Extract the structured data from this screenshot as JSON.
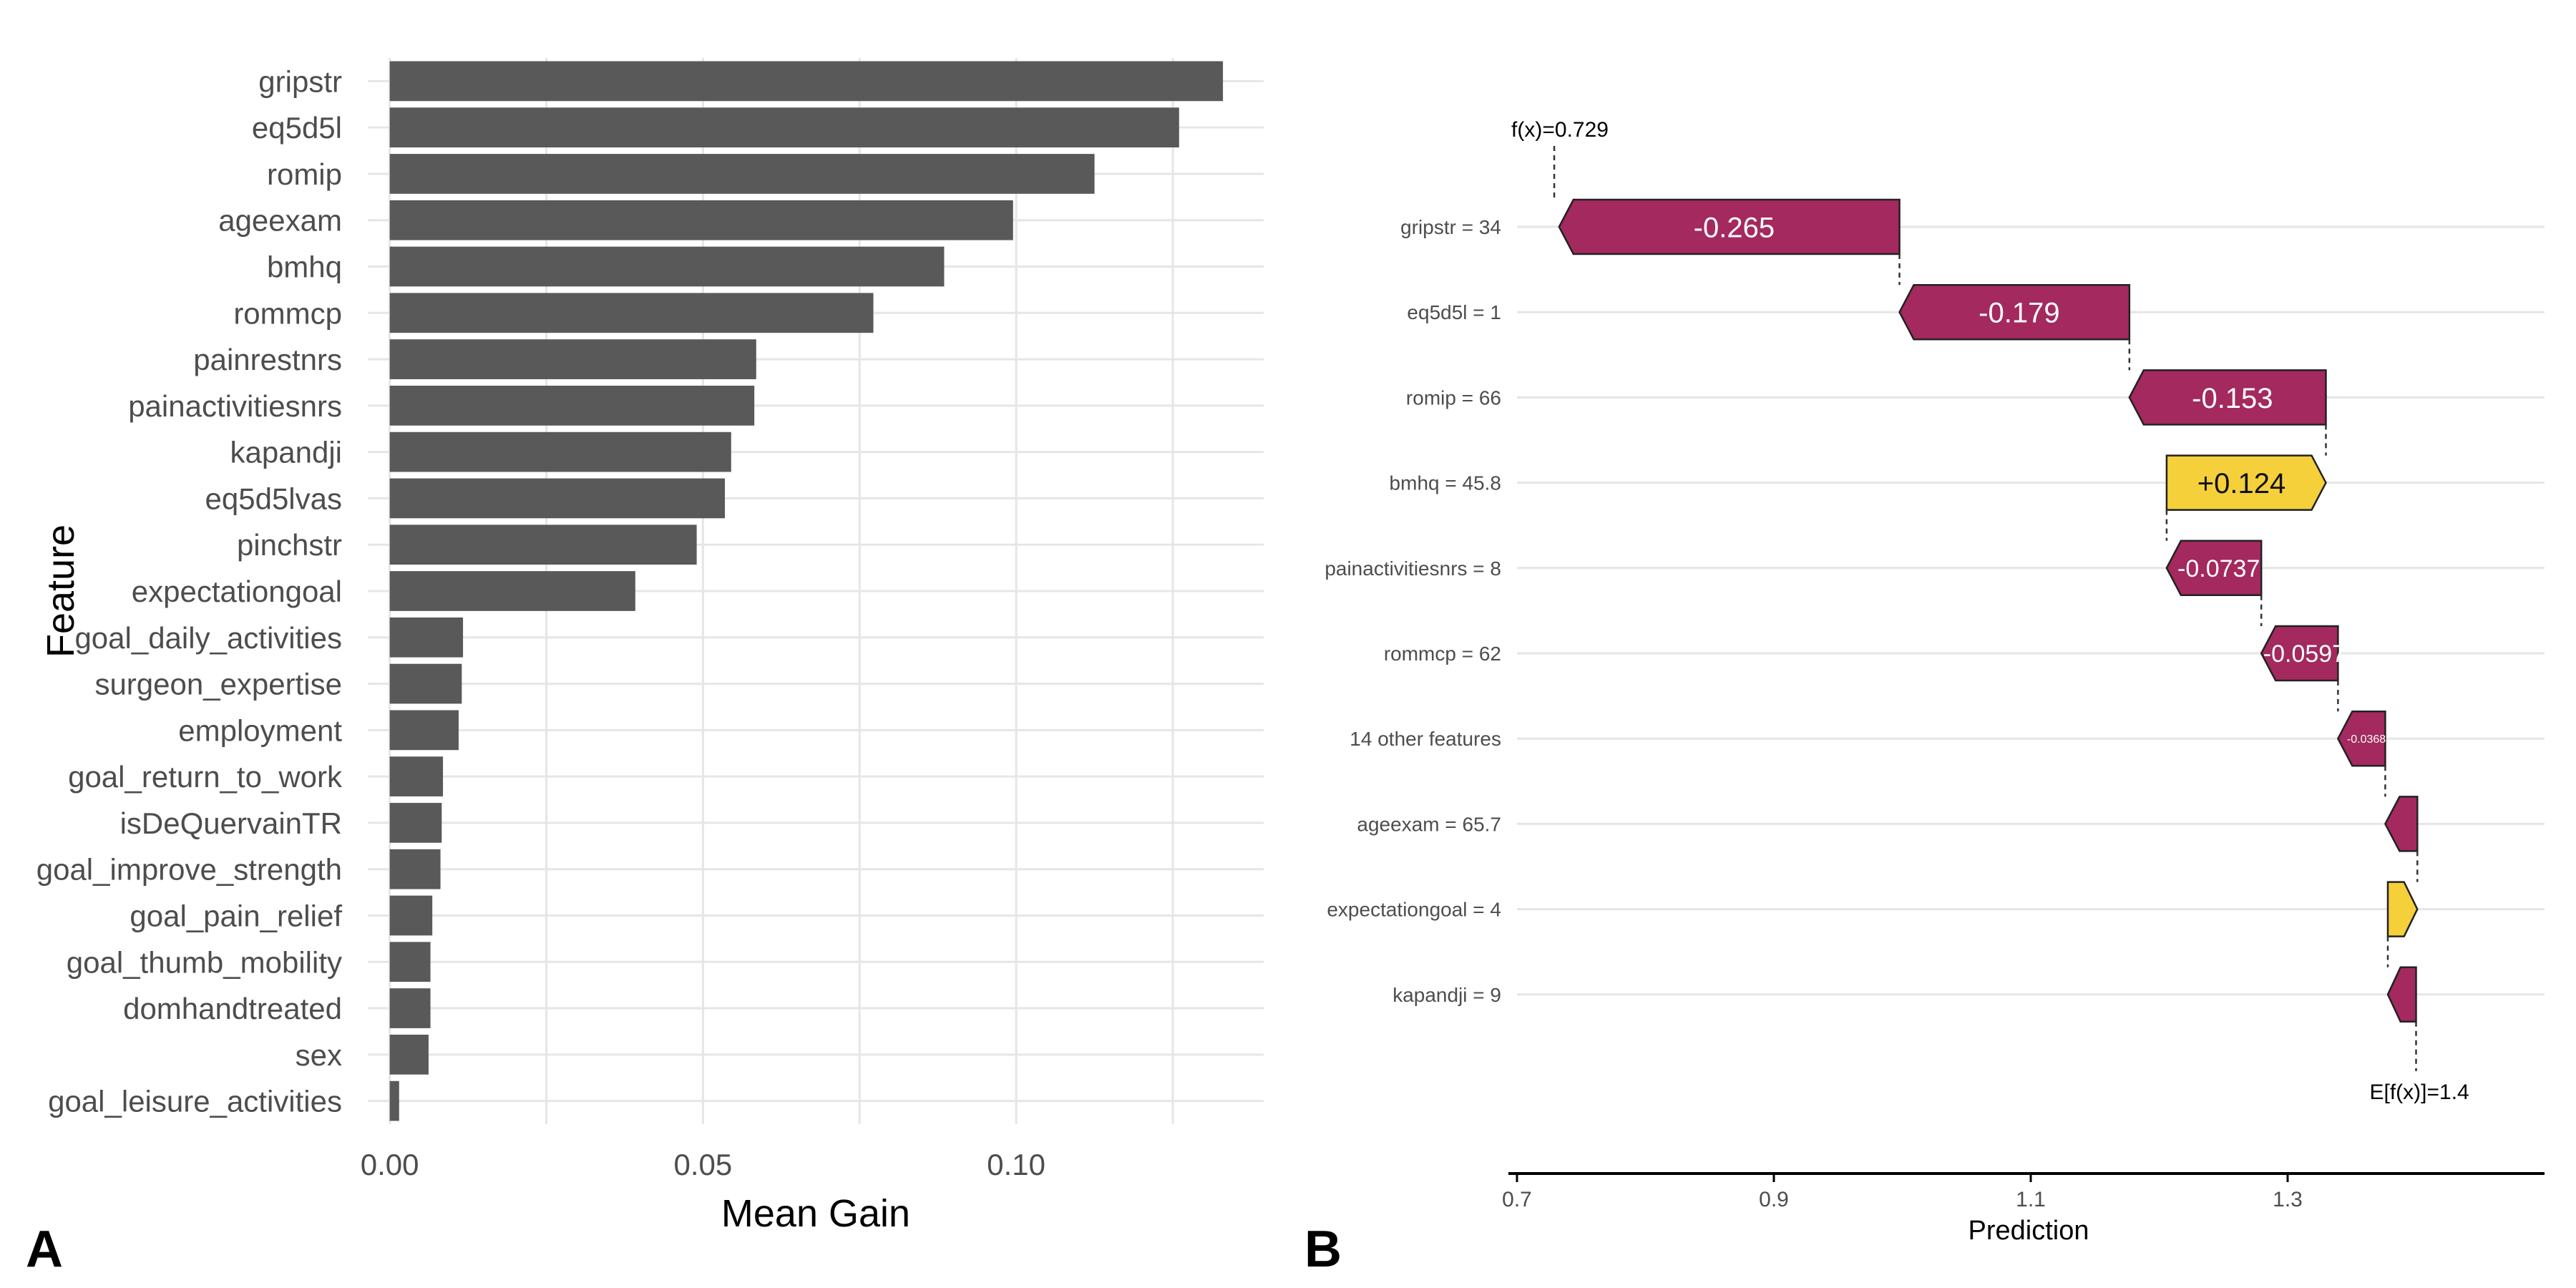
{
  "panels": {
    "a_label": "A",
    "b_label": "B"
  },
  "chart_data": [
    {
      "type": "bar",
      "orientation": "horizontal",
      "categories": [
        "gripstr",
        "eq5d5l",
        "romip",
        "ageexam",
        "bmhq",
        "rommcp",
        "painrestnrs",
        "painactivitiesnrs",
        "kapandji",
        "eq5d5lvas",
        "pinchstr",
        "expectationgoal",
        "goal_daily_activities",
        "surgeon_expertise",
        "employment",
        "goal_return_to_work",
        "isDeQuervainTR",
        "goal_improve_strength",
        "goal_pain_relief",
        "goal_thumb_mobility",
        "domhandtreated",
        "sex",
        "goal_leisure_activities"
      ],
      "values": [
        0.133,
        0.126,
        0.1125,
        0.0995,
        0.0885,
        0.0772,
        0.0585,
        0.0582,
        0.0545,
        0.0535,
        0.049,
        0.0392,
        0.0117,
        0.0115,
        0.011,
        0.0085,
        0.0083,
        0.0081,
        0.0068,
        0.0065,
        0.0065,
        0.0062,
        0.0015
      ],
      "xlabel": "Mean Gain",
      "ylabel": "Feature",
      "xticks": [
        0.0,
        0.05,
        0.1
      ],
      "xtick_labels": [
        "0.00",
        "0.05",
        "0.10"
      ],
      "xlim": [
        -0.0035,
        0.1395
      ],
      "bar_color": "#595959",
      "grid": true
    },
    {
      "type": "waterfall",
      "rows": [
        {
          "label": "gripstr = 34",
          "value": -0.265,
          "value_label": "-0.265"
        },
        {
          "label": "eq5d5l = 1",
          "value": -0.179,
          "value_label": "-0.179"
        },
        {
          "label": "romip = 66",
          "value": -0.153,
          "value_label": "-0.153"
        },
        {
          "label": "bmhq = 45.8",
          "value": 0.124,
          "value_label": "+0.124"
        },
        {
          "label": "painactivitiesnrs = 8",
          "value": -0.0737,
          "value_label": "-0.0737"
        },
        {
          "label": "rommcp = 62",
          "value": -0.0597,
          "value_label": "-0.0597"
        },
        {
          "label": "14 other features",
          "value": -0.0368,
          "value_label": "-0.0368"
        },
        {
          "label": "ageexam = 65.7",
          "value": -0.025,
          "value_label": ""
        },
        {
          "label": "expectationgoal = 4",
          "value": 0.023,
          "value_label": ""
        },
        {
          "label": "kapandji = 9",
          "value": -0.022,
          "value_label": ""
        }
      ],
      "fx_label": "f(x)=0.729",
      "efx_label": "E[f(x)]=1.4",
      "fx": 0.729,
      "efx": 1.4,
      "xlabel": "Prediction",
      "xticks": [
        0.7,
        0.9,
        1.1,
        1.3
      ],
      "xtick_labels": [
        "0.7",
        "0.9",
        "1.1",
        "1.3"
      ],
      "xlim": [
        0.7,
        1.5
      ],
      "negative_color": "#a3295e",
      "positive_color": "#f5d03b"
    }
  ]
}
